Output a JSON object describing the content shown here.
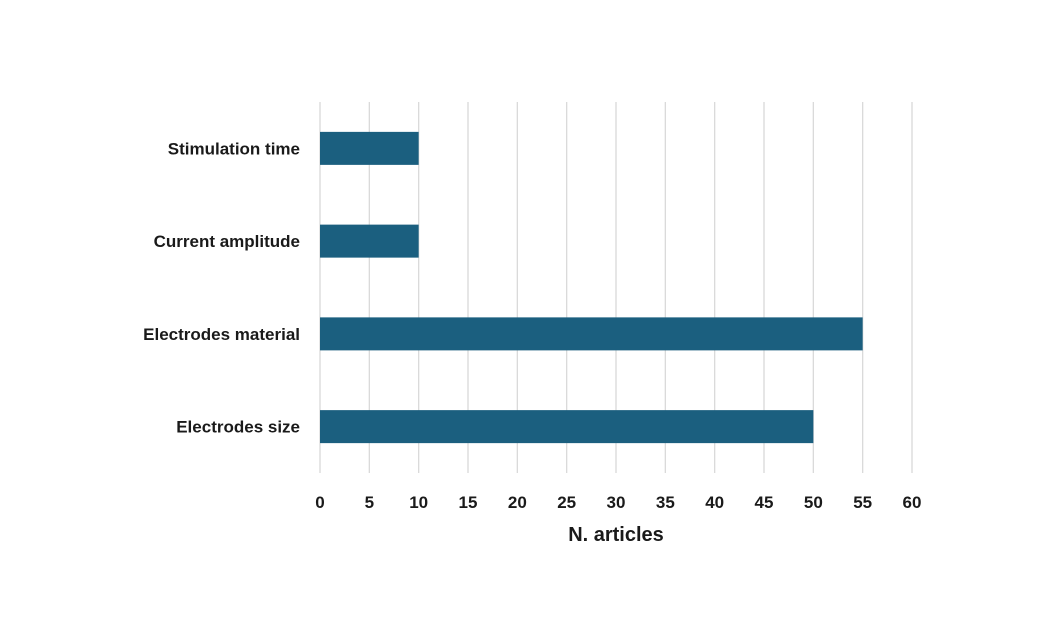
{
  "chart_data": {
    "type": "bar",
    "orientation": "horizontal",
    "title": "",
    "xlabel": "N. articles",
    "ylabel": "",
    "categories": [
      "Stimulation time",
      "Current amplitude",
      "Electrodes material",
      "Electrodes size"
    ],
    "values": [
      10,
      10,
      55,
      50
    ],
    "xlim": [
      0,
      60
    ],
    "xticks": [
      0,
      5,
      10,
      15,
      20,
      25,
      30,
      35,
      40,
      45,
      50,
      55,
      60
    ],
    "grid": "vertical",
    "legend": "none",
    "bar_color": "#1b5f7f",
    "grid_color": "#d9d9d9"
  }
}
